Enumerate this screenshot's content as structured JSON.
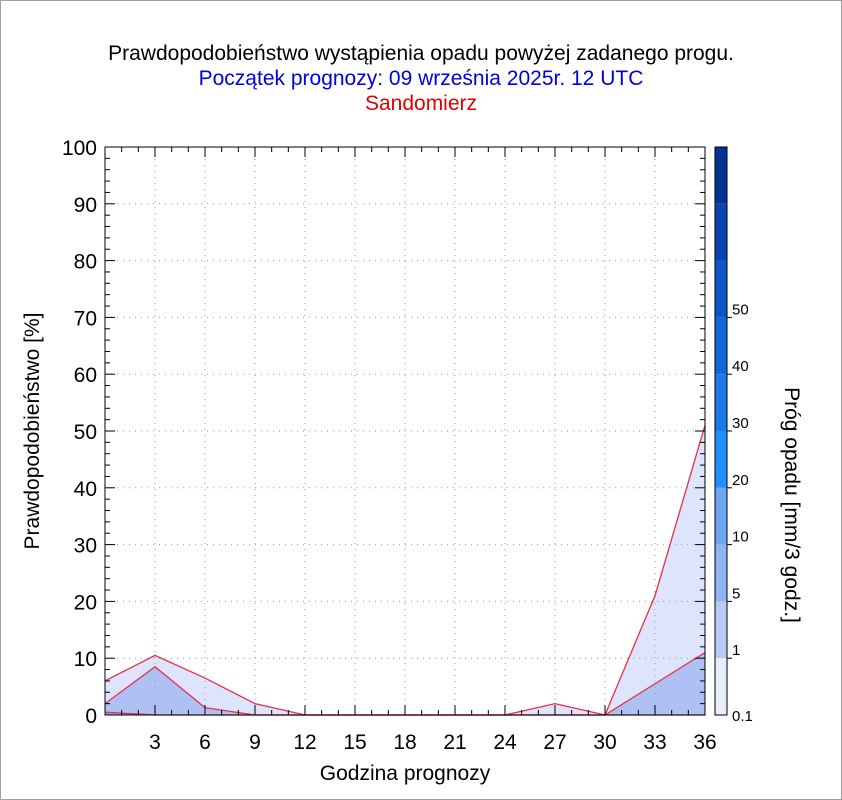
{
  "chart_data": {
    "type": "area",
    "title": "Prawdopodobieństwo wystąpienia opadu powyżej zadanego progu.",
    "subtitle": "Początek prognozy: 09 września 2025r. 12 UTC",
    "location": "Sandomierz",
    "xlabel": "Godzina prognozy",
    "ylabel": "Prawdopodobieństwo [%]",
    "colorbar_label": "Próg opadu [mm/3 godz.]",
    "xlim": [
      0,
      36
    ],
    "ylim": [
      0,
      100
    ],
    "x_ticks": [
      "3",
      "6",
      "9",
      "12",
      "15",
      "18",
      "21",
      "24",
      "27",
      "30",
      "33",
      "36"
    ],
    "y_ticks": [
      "0",
      "10",
      "20",
      "30",
      "40",
      "50",
      "60",
      "70",
      "80",
      "90",
      "100"
    ],
    "grid": true,
    "x": [
      0,
      3,
      6,
      9,
      12,
      15,
      18,
      21,
      24,
      27,
      30,
      33,
      36
    ],
    "series": [
      {
        "threshold": 0.1,
        "color": "#dde4fb",
        "values": [
          6,
          10.5,
          6.5,
          2,
          0,
          0,
          0,
          0,
          0,
          2,
          0,
          21,
          51
        ]
      },
      {
        "threshold": 1,
        "color": "#aec0f4",
        "values": [
          2,
          8.5,
          1.3,
          0,
          0,
          0,
          0,
          0,
          0,
          0,
          0,
          5.5,
          11
        ]
      },
      {
        "threshold": 5,
        "color": "#7aa0ee",
        "values": [
          0.5,
          0,
          0,
          0,
          0,
          0,
          0,
          0,
          0,
          0,
          0,
          0,
          0
        ]
      }
    ],
    "colorbar": {
      "labels": [
        "0.1",
        "1",
        "5",
        "10",
        "20",
        "30",
        "40",
        "50"
      ],
      "segments": [
        "#e8eefd",
        "#b8cbf7",
        "#90b4f4",
        "#6ea6f2",
        "#1e90ff",
        "#1a7be8",
        "#1467d8",
        "#0e55c7",
        "#0944b0",
        "#053394"
      ]
    }
  }
}
